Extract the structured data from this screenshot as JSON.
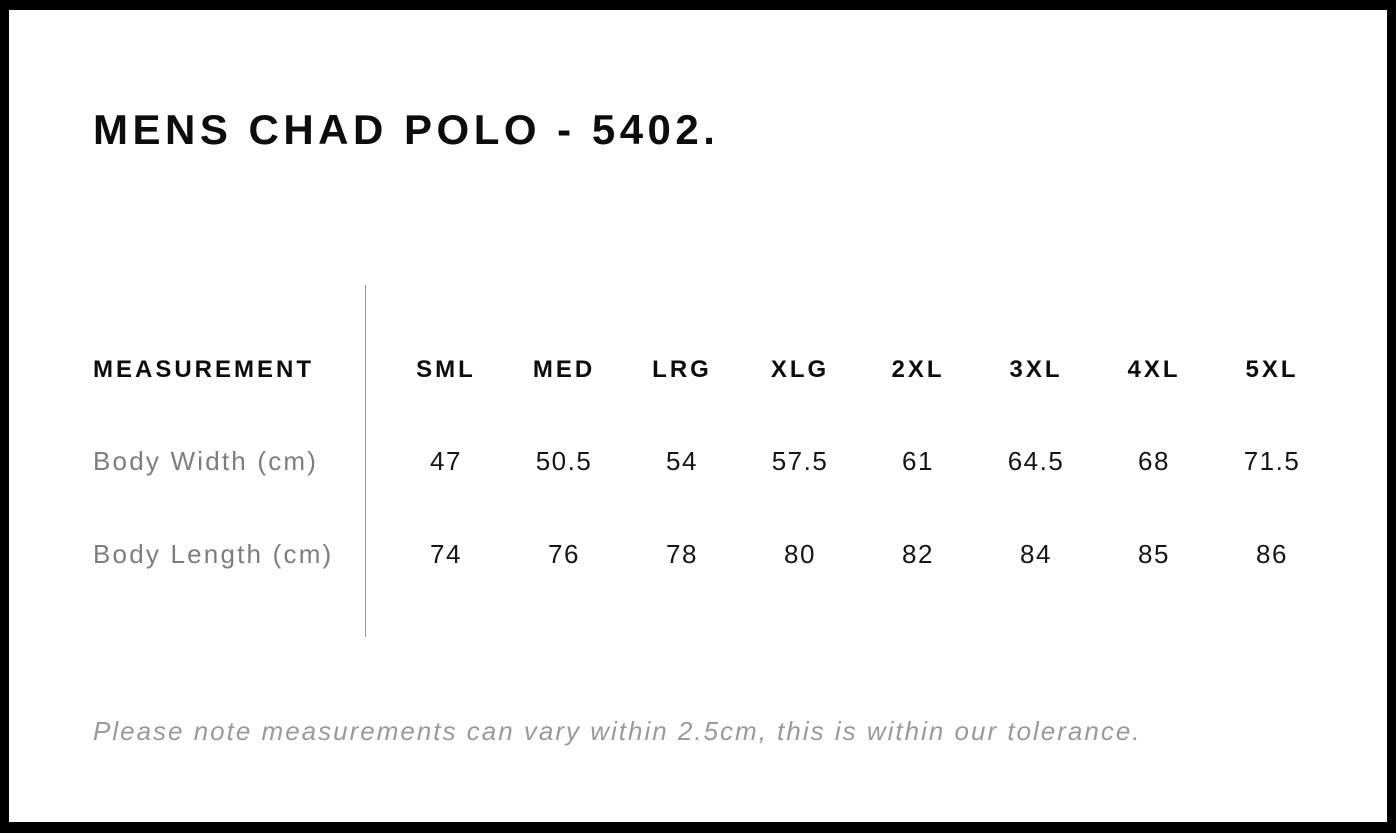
{
  "title": "MENS CHAD POLO - 5402.",
  "table": {
    "measurement_header": "MEASUREMENT",
    "size_headers": [
      "SML",
      "MED",
      "LRG",
      "XLG",
      "2XL",
      "3XL",
      "4XL",
      "5XL"
    ],
    "rows": [
      {
        "label": "Body Width (cm)",
        "values": [
          "47",
          "50.5",
          "54",
          "57.5",
          "61",
          "64.5",
          "68",
          "71.5"
        ]
      },
      {
        "label": "Body Length (cm)",
        "values": [
          "74",
          "76",
          "78",
          "80",
          "82",
          "84",
          "85",
          "86"
        ]
      }
    ]
  },
  "note": "Please note measurements can vary within 2.5cm, this is within our tolerance.",
  "colors": {
    "frame": "#000000",
    "background": "#ffffff",
    "heading_text": "#0d0d0d",
    "value_text": "#161616",
    "label_gray": "#7e7e7e",
    "note_gray": "#9a9a9a",
    "divider_gray": "#999999"
  }
}
